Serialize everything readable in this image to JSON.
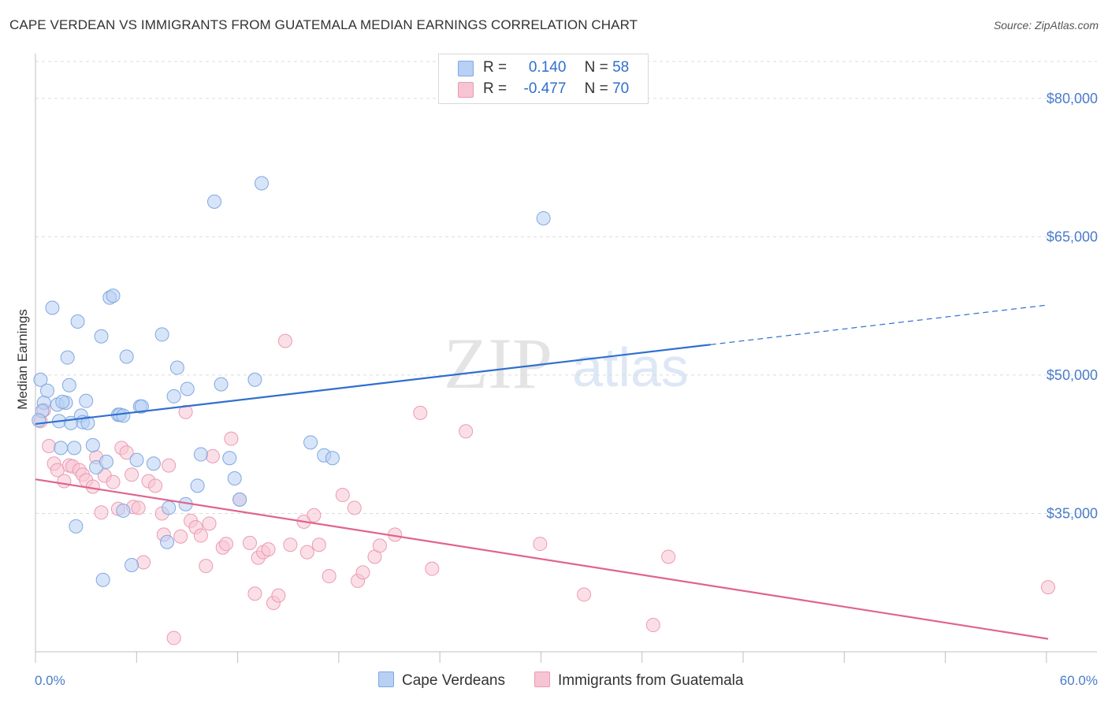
{
  "title": "CAPE VERDEAN VS IMMIGRANTS FROM GUATEMALA MEDIAN EARNINGS CORRELATION CHART",
  "source": "Source: ZipAtlas.com",
  "watermark": {
    "zip": "ZIP",
    "atlas": "atlas"
  },
  "legend": {
    "r_label": "R =",
    "n_label": "N =",
    "series": [
      {
        "r": "0.140",
        "n": "58"
      },
      {
        "r": "-0.477",
        "n": "70"
      }
    ]
  },
  "bottom_legend": [
    "Cape Verdeans",
    "Immigrants from Guatemala"
  ],
  "colors": {
    "blue_fill": "#b8d0f4",
    "blue_stroke": "#7fa8e0",
    "blue_line": "#2f6fce",
    "pink_fill": "#f7c4d3",
    "pink_stroke": "#ec9ab3",
    "pink_line": "#e0648e",
    "tick_blue": "#4a7cc9"
  },
  "chart_data": {
    "type": "scatter",
    "title": "CAPE VERDEAN VS IMMIGRANTS FROM GUATEMALA MEDIAN EARNINGS CORRELATION CHART",
    "xlabel": "",
    "ylabel": "Median Earnings",
    "xlim": [
      0,
      60
    ],
    "ylim": [
      20000,
      84000
    ],
    "x_tick_labels": [
      "0.0%",
      "60.0%"
    ],
    "y_ticks": [
      35000,
      50000,
      65000,
      80000
    ],
    "y_tick_labels": [
      "$35,000",
      "$50,000",
      "$65,000",
      "$80,000"
    ],
    "series": [
      {
        "name": "Cape Verdeans",
        "r": 0.14,
        "n": 58,
        "trend": {
          "x0": 0,
          "y0": 44700,
          "x1": 40,
          "y1": 53300,
          "dashed_to_x": 60,
          "dashed_to_y": 57600
        },
        "points": [
          [
            0.3,
            49500
          ],
          [
            0.5,
            47000
          ],
          [
            0.7,
            48300
          ],
          [
            1.0,
            57300
          ],
          [
            1.3,
            46800
          ],
          [
            1.4,
            45000
          ],
          [
            1.5,
            42100
          ],
          [
            1.8,
            47000
          ],
          [
            1.9,
            51900
          ],
          [
            2.0,
            48900
          ],
          [
            2.3,
            42100
          ],
          [
            2.4,
            33600
          ],
          [
            2.5,
            55800
          ],
          [
            2.7,
            45600
          ],
          [
            2.8,
            44900
          ],
          [
            3.0,
            47200
          ],
          [
            3.1,
            44800
          ],
          [
            3.4,
            42400
          ],
          [
            3.6,
            40000
          ],
          [
            3.9,
            54200
          ],
          [
            4.0,
            27800
          ],
          [
            4.2,
            40600
          ],
          [
            4.4,
            58400
          ],
          [
            4.6,
            58600
          ],
          [
            4.9,
            45700
          ],
          [
            5.0,
            45700
          ],
          [
            5.2,
            35300
          ],
          [
            5.2,
            45600
          ],
          [
            5.4,
            52000
          ],
          [
            5.7,
            29400
          ],
          [
            6.0,
            40800
          ],
          [
            6.2,
            46600
          ],
          [
            6.3,
            46600
          ],
          [
            7.0,
            40400
          ],
          [
            7.5,
            54400
          ],
          [
            7.8,
            31900
          ],
          [
            7.9,
            35600
          ],
          [
            8.2,
            47700
          ],
          [
            8.4,
            50800
          ],
          [
            8.9,
            36000
          ],
          [
            9.0,
            48500
          ],
          [
            9.6,
            38000
          ],
          [
            9.8,
            41400
          ],
          [
            10.6,
            68800
          ],
          [
            11.0,
            49000
          ],
          [
            11.5,
            41000
          ],
          [
            11.8,
            38800
          ],
          [
            12.1,
            36500
          ],
          [
            13.0,
            49500
          ],
          [
            13.4,
            70800
          ],
          [
            16.3,
            42700
          ],
          [
            17.1,
            41300
          ],
          [
            17.6,
            41000
          ],
          [
            30.1,
            67000
          ],
          [
            0.4,
            46100
          ],
          [
            2.1,
            44800
          ],
          [
            0.2,
            45100
          ],
          [
            1.6,
            47100
          ]
        ]
      },
      {
        "name": "Immigrants from Guatemala",
        "r": -0.477,
        "n": 70,
        "trend": {
          "x0": 0,
          "y0": 38700,
          "x1": 60,
          "y1": 21400
        },
        "points": [
          [
            0.3,
            45000
          ],
          [
            0.5,
            46200
          ],
          [
            0.8,
            42300
          ],
          [
            1.1,
            40400
          ],
          [
            1.3,
            39700
          ],
          [
            1.7,
            38500
          ],
          [
            2.0,
            40200
          ],
          [
            2.2,
            40100
          ],
          [
            2.6,
            39700
          ],
          [
            2.8,
            39200
          ],
          [
            3.0,
            38600
          ],
          [
            3.4,
            37900
          ],
          [
            3.6,
            41100
          ],
          [
            3.9,
            35100
          ],
          [
            4.1,
            39100
          ],
          [
            4.6,
            38400
          ],
          [
            4.9,
            35500
          ],
          [
            5.1,
            42100
          ],
          [
            5.4,
            41600
          ],
          [
            5.7,
            39200
          ],
          [
            5.8,
            35700
          ],
          [
            6.1,
            35600
          ],
          [
            6.4,
            29700
          ],
          [
            6.7,
            38500
          ],
          [
            7.1,
            38000
          ],
          [
            7.5,
            35000
          ],
          [
            7.6,
            32700
          ],
          [
            7.9,
            40200
          ],
          [
            8.2,
            21500
          ],
          [
            8.6,
            32500
          ],
          [
            8.9,
            46000
          ],
          [
            9.2,
            34200
          ],
          [
            9.5,
            33500
          ],
          [
            9.8,
            32600
          ],
          [
            10.1,
            29300
          ],
          [
            10.3,
            33900
          ],
          [
            10.5,
            41200
          ],
          [
            11.1,
            31300
          ],
          [
            11.3,
            31700
          ],
          [
            11.6,
            43100
          ],
          [
            12.1,
            36500
          ],
          [
            12.7,
            31800
          ],
          [
            13.0,
            26300
          ],
          [
            13.2,
            30200
          ],
          [
            13.5,
            30800
          ],
          [
            13.8,
            31100
          ],
          [
            14.1,
            25300
          ],
          [
            14.4,
            26100
          ],
          [
            14.8,
            53700
          ],
          [
            15.1,
            31600
          ],
          [
            15.9,
            34100
          ],
          [
            16.1,
            30800
          ],
          [
            16.5,
            34800
          ],
          [
            16.8,
            31600
          ],
          [
            17.4,
            28200
          ],
          [
            18.2,
            37000
          ],
          [
            18.9,
            35600
          ],
          [
            19.1,
            27700
          ],
          [
            19.4,
            28600
          ],
          [
            20.1,
            30300
          ],
          [
            20.4,
            31500
          ],
          [
            21.3,
            32700
          ],
          [
            22.8,
            45900
          ],
          [
            23.5,
            29000
          ],
          [
            25.5,
            43900
          ],
          [
            29.9,
            31700
          ],
          [
            32.5,
            26200
          ],
          [
            36.6,
            22900
          ],
          [
            37.5,
            30300
          ],
          [
            60.0,
            27000
          ]
        ]
      }
    ]
  }
}
